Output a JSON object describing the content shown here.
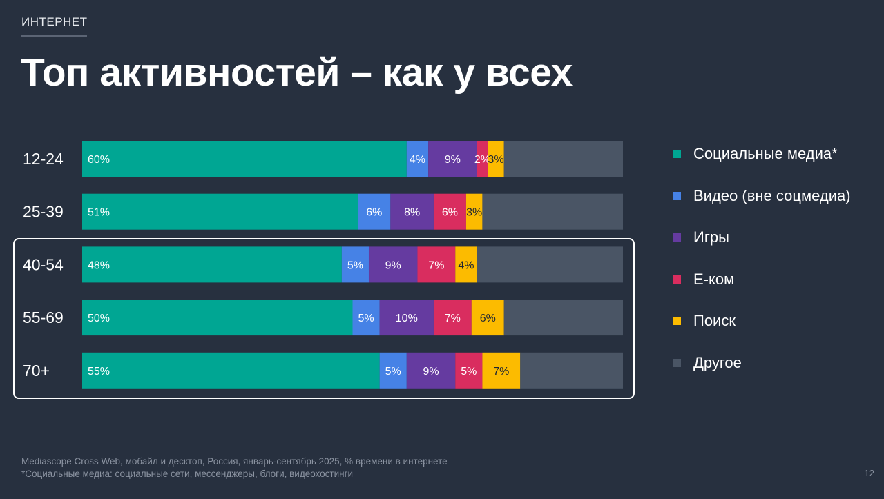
{
  "header": {
    "section": "ИНТЕРНЕТ",
    "title": "Топ активностей – как у всех"
  },
  "chart_data": {
    "type": "bar",
    "orientation": "horizontal",
    "stacked": true,
    "categories": [
      "12-24",
      "25-39",
      "40-54",
      "55-69",
      "70+"
    ],
    "series": [
      {
        "name": "Социальные медиа*",
        "color": "#00a693",
        "values": [
          60,
          51,
          48,
          50,
          55
        ],
        "labels": [
          "60%",
          "51%",
          "48%",
          "50%",
          "55%"
        ]
      },
      {
        "name": "Видео (вне соцмедиа)",
        "color": "#4682e6",
        "values": [
          4,
          6,
          5,
          5,
          5
        ],
        "labels": [
          "4%",
          "6%",
          "5%",
          "5%",
          "5%"
        ]
      },
      {
        "name": "Игры",
        "color": "#653ba0",
        "values": [
          9,
          8,
          9,
          10,
          9
        ],
        "labels": [
          "9%",
          "8%",
          "9%",
          "10%",
          "9%"
        ]
      },
      {
        "name": "Е-ком",
        "color": "#d92d5f",
        "values": [
          2,
          6,
          7,
          7,
          5
        ],
        "labels": [
          "2%",
          "6%",
          "7%",
          "7%",
          "5%"
        ]
      },
      {
        "name": "Поиск",
        "color": "#fcbb00",
        "values": [
          3,
          3,
          4,
          6,
          7
        ],
        "labels": [
          "3%",
          "3%",
          "4%",
          "6%",
          "7%"
        ]
      },
      {
        "name": "Другое",
        "color": "#4a5565",
        "values": [
          22,
          26,
          27,
          22,
          19
        ],
        "labels": [
          "",
          "",
          "",
          "",
          ""
        ]
      }
    ],
    "xlim": [
      0,
      100
    ],
    "highlighted_categories": [
      "40-54",
      "55-69",
      "70+"
    ],
    "legend_position": "right"
  },
  "footnote": {
    "line1": "Mediascope Cross Web, мобайл и десктоп, Россия, январь-сентябрь 2025, % времени в интернете",
    "line2": "*Социальные медиа: социальные сети, мессенджеры, блоги, видеохостинги"
  },
  "page_number": "12"
}
